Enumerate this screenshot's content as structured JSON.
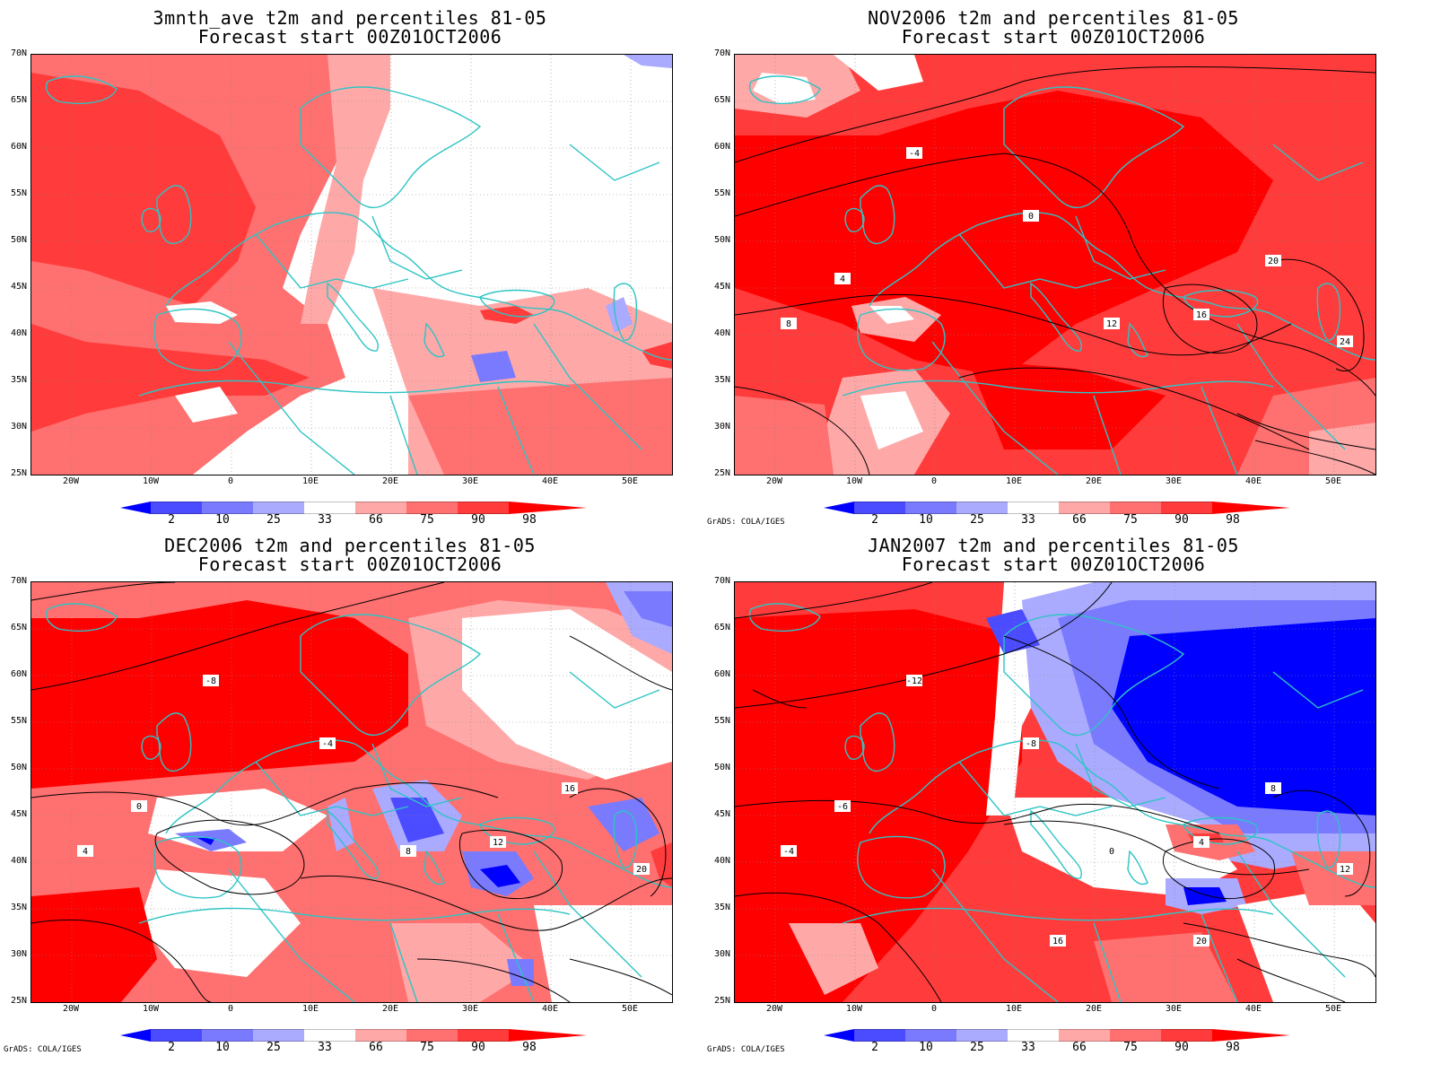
{
  "panels": [
    {
      "title1": "3mnth_ave t2m and percentiles 81-05",
      "title2": "Forecast start 00Z01OCT2006",
      "credit": "",
      "theme": "warm_east_neutral"
    },
    {
      "title1": "NOV2006 t2m and percentiles 81-05",
      "title2": "Forecast start 00Z01OCT2006",
      "credit": "GrADS: COLA/IGES",
      "theme": "all_warm"
    },
    {
      "title1": "DEC2006 t2m and percentiles 81-05",
      "title2": "Forecast start 00Z01OCT2006",
      "credit": "GrADS: COLA/IGES",
      "theme": "warm_mixed"
    },
    {
      "title1": "JAN2007 t2m and percentiles 81-05",
      "title2": "Forecast start 00Z01OCT2006",
      "credit": "GrADS: COLA/IGES",
      "theme": "warm_west_cold_east"
    }
  ],
  "axes": {
    "lat_labels": [
      "70N",
      "65N",
      "60N",
      "55N",
      "50N",
      "45N",
      "40N",
      "35N",
      "30N",
      "25N"
    ],
    "lon_labels": [
      "20W",
      "10W",
      "0",
      "10E",
      "20E",
      "30E",
      "40E",
      "50E"
    ]
  },
  "colorbar": {
    "labels": [
      "2",
      "10",
      "25",
      "33",
      "66",
      "75",
      "90",
      "98"
    ],
    "colors": [
      "#0000ff",
      "#4b4bff",
      "#7a7aff",
      "#aaaaff",
      "#ffffff",
      "#ffa8a8",
      "#ff7070",
      "#ff3b3b",
      "#ff0000"
    ]
  },
  "contour_labels": {
    "p2": [
      "-4",
      "0",
      "4",
      "8",
      "12",
      "16",
      "20",
      "24"
    ],
    "p3": [
      "-8",
      "-4",
      "0",
      "4",
      "8",
      "12",
      "16",
      "20"
    ],
    "p4": [
      "-12",
      "-8",
      "-6",
      "-4",
      "0",
      "4",
      "8",
      "12",
      "16",
      "20"
    ]
  },
  "colors": {
    "coast": "#2ec4c4",
    "grid": "#888888",
    "contour": "#000000"
  }
}
